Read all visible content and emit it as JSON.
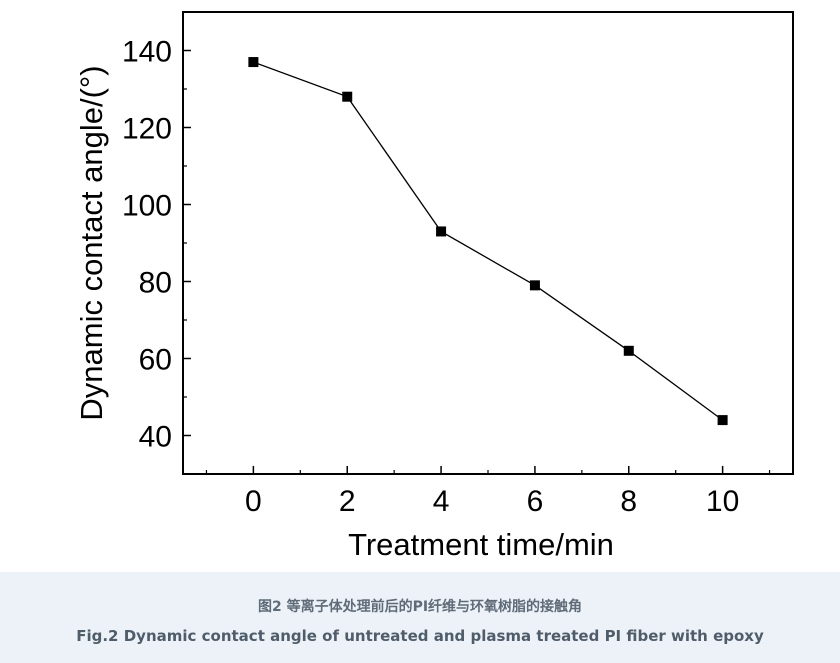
{
  "chart_data": {
    "type": "line",
    "x": [
      0,
      2,
      4,
      6,
      8,
      10
    ],
    "series": [
      {
        "values": [
          137,
          128,
          93,
          79,
          62,
          44
        ],
        "color": "#000000",
        "marker": "square"
      }
    ],
    "xlabel": "Treatment time/min",
    "ylabel": "Dynamic contact angle/(°)",
    "xlim": [
      -1.5,
      11.5
    ],
    "ylim": [
      30,
      150
    ],
    "xticks": [
      0,
      2,
      4,
      6,
      8,
      10
    ],
    "yticks": [
      40,
      60,
      80,
      100,
      120,
      140
    ],
    "grid": false
  },
  "caption": {
    "chinese": "图2 等离子体处理前后的PI纤维与环氧树脂的接触角",
    "english": "Fig.2 Dynamic contact angle of untreated and plasma treated PI fiber with epoxy"
  }
}
